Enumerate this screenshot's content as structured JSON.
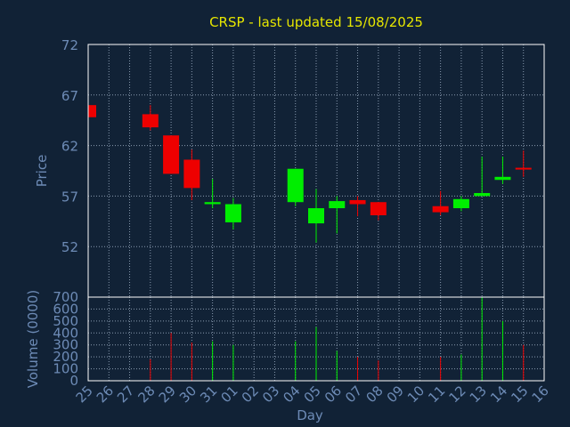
{
  "chart_data": {
    "type": "candlestick",
    "title": "CRSP - last updated 15/08/2025",
    "xlabel": "Day",
    "price_panel": {
      "ylabel": "Price",
      "ylim": [
        47,
        72
      ],
      "yticks": [
        52,
        57,
        62,
        67,
        72
      ]
    },
    "volume_panel": {
      "ylabel": "Volume (0000)",
      "ylim": [
        0,
        700
      ],
      "yticks": [
        0,
        100,
        200,
        300,
        400,
        500,
        600,
        700
      ]
    },
    "x_tick_labels": [
      "25",
      "26",
      "27",
      "28",
      "29",
      "30",
      "31",
      "01",
      "02",
      "03",
      "04",
      "05",
      "06",
      "07",
      "08",
      "09",
      "10",
      "11",
      "12",
      "13",
      "14",
      "15",
      "16"
    ],
    "grid": true,
    "colors": {
      "background": "#112236",
      "text": "#6d8bb6",
      "title": "#e6e600",
      "up": "#00ee00",
      "down": "#ee0000",
      "grid": "#8a9bb0",
      "frame": "#ffffff"
    },
    "candles": [
      {
        "x": 0,
        "open": 66.0,
        "close": 64.8,
        "high": 66.0,
        "low": 64.8,
        "volume": 0
      },
      {
        "x": 3,
        "open": 65.1,
        "close": 63.8,
        "high": 66.0,
        "low": 63.5,
        "volume": 180
      },
      {
        "x": 4,
        "open": 63.0,
        "close": 59.2,
        "high": 63.0,
        "low": 59.2,
        "volume": 400
      },
      {
        "x": 5,
        "open": 60.6,
        "close": 57.8,
        "high": 61.6,
        "low": 56.6,
        "volume": 320
      },
      {
        "x": 6,
        "open": 56.2,
        "close": 56.4,
        "high": 58.7,
        "low": 55.8,
        "volume": 330
      },
      {
        "x": 7,
        "open": 54.4,
        "close": 56.2,
        "high": 56.8,
        "low": 53.7,
        "volume": 300
      },
      {
        "x": 10,
        "open": 56.4,
        "close": 59.7,
        "high": 59.7,
        "low": 56.0,
        "volume": 330
      },
      {
        "x": 11,
        "open": 54.3,
        "close": 55.8,
        "high": 57.7,
        "low": 52.4,
        "volume": 450
      },
      {
        "x": 12,
        "open": 55.8,
        "close": 56.5,
        "high": 57.0,
        "low": 53.3,
        "volume": 250
      },
      {
        "x": 13,
        "open": 56.6,
        "close": 56.2,
        "high": 57.0,
        "low": 55.0,
        "volume": 200
      },
      {
        "x": 14,
        "open": 56.4,
        "close": 55.1,
        "high": 56.4,
        "low": 54.6,
        "volume": 170
      },
      {
        "x": 17,
        "open": 56.0,
        "close": 55.4,
        "high": 57.5,
        "low": 55.1,
        "volume": 200
      },
      {
        "x": 18,
        "open": 55.8,
        "close": 56.7,
        "high": 57.0,
        "low": 55.5,
        "volume": 220
      },
      {
        "x": 19,
        "open": 57.0,
        "close": 57.3,
        "high": 60.9,
        "low": 57.0,
        "volume": 700
      },
      {
        "x": 20,
        "open": 58.6,
        "close": 58.9,
        "high": 60.9,
        "low": 58.2,
        "volume": 500
      },
      {
        "x": 21,
        "open": 59.8,
        "close": 59.7,
        "high": 61.5,
        "low": 58.9,
        "volume": 300
      }
    ]
  }
}
